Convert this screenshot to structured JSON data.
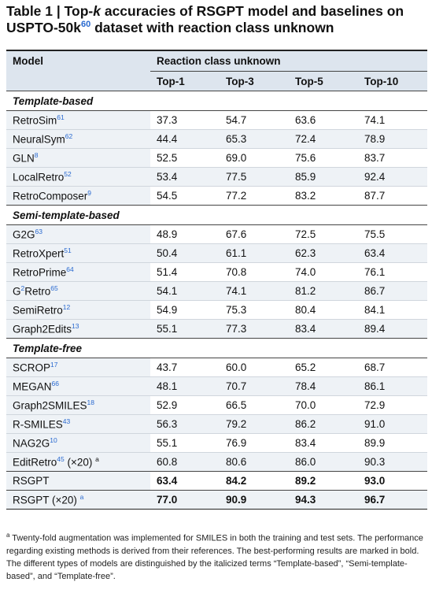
{
  "title": {
    "prefix": "Table 1 | Top-",
    "k": "k",
    "middle": " accuracies of RSGPT model and baselines on USPTO-50k",
    "ref": "60",
    "suffix": " dataset with reaction class unknown"
  },
  "header": {
    "model": "Model",
    "group": "Reaction class unknown",
    "cols": [
      "Top-1",
      "Top-3",
      "Top-5",
      "Top-10"
    ]
  },
  "sections": [
    {
      "label": "Template-based",
      "rows": [
        {
          "pre": "",
          "sup_pre": "",
          "name": "RetroSim",
          "ref": "61",
          "extra": "",
          "values": [
            "37.3",
            "54.7",
            "63.6",
            "74.1"
          ]
        },
        {
          "pre": "",
          "sup_pre": "",
          "name": "NeuralSym",
          "ref": "62",
          "extra": "",
          "values": [
            "44.4",
            "65.3",
            "72.4",
            "78.9"
          ]
        },
        {
          "pre": "",
          "sup_pre": "",
          "name": "GLN",
          "ref": "8",
          "extra": "",
          "values": [
            "52.5",
            "69.0",
            "75.6",
            "83.7"
          ]
        },
        {
          "pre": "",
          "sup_pre": "",
          "name": "LocalRetro",
          "ref": "52",
          "extra": "",
          "values": [
            "53.4",
            "77.5",
            "85.9",
            "92.4"
          ]
        },
        {
          "pre": "",
          "sup_pre": "",
          "name": "RetroComposer",
          "ref": "9",
          "extra": "",
          "values": [
            "54.5",
            "77.2",
            "83.2",
            "87.7"
          ]
        }
      ]
    },
    {
      "label": "Semi-template-based",
      "rows": [
        {
          "pre": "",
          "sup_pre": "",
          "name": "G2G",
          "ref": "63",
          "extra": "",
          "values": [
            "48.9",
            "67.6",
            "72.5",
            "75.5"
          ]
        },
        {
          "pre": "",
          "sup_pre": "",
          "name": "RetroXpert",
          "ref": "51",
          "extra": "",
          "values": [
            "50.4",
            "61.1",
            "62.3",
            "63.4"
          ]
        },
        {
          "pre": "",
          "sup_pre": "",
          "name": "RetroPrime",
          "ref": "64",
          "extra": "",
          "values": [
            "51.4",
            "70.8",
            "74.0",
            "76.1"
          ]
        },
        {
          "pre": "G",
          "sup_pre": "2",
          "name": "Retro",
          "ref": "65",
          "extra": "",
          "values": [
            "54.1",
            "74.1",
            "81.2",
            "86.7"
          ]
        },
        {
          "pre": "",
          "sup_pre": "",
          "name": "SemiRetro",
          "ref": "12",
          "extra": "",
          "values": [
            "54.9",
            "75.3",
            "80.4",
            "84.1"
          ]
        },
        {
          "pre": "",
          "sup_pre": "",
          "name": "Graph2Edits",
          "ref": "13",
          "extra": "",
          "values": [
            "55.1",
            "77.3",
            "83.4",
            "89.4"
          ]
        }
      ]
    },
    {
      "label": "Template-free",
      "rows": [
        {
          "pre": "",
          "sup_pre": "",
          "name": "SCROP",
          "ref": "17",
          "extra": "",
          "values": [
            "43.7",
            "60.0",
            "65.2",
            "68.7"
          ]
        },
        {
          "pre": "",
          "sup_pre": "",
          "name": "MEGAN",
          "ref": "66",
          "extra": "",
          "values": [
            "48.1",
            "70.7",
            "78.4",
            "86.1"
          ]
        },
        {
          "pre": "",
          "sup_pre": "",
          "name": "Graph2SMILES",
          "ref": "18",
          "extra": "",
          "values": [
            "52.9",
            "66.5",
            "70.0",
            "72.9"
          ]
        },
        {
          "pre": "",
          "sup_pre": "",
          "name": "R-SMILES",
          "ref": "43",
          "extra": "",
          "values": [
            "56.3",
            "79.2",
            "86.2",
            "91.0"
          ]
        },
        {
          "pre": "",
          "sup_pre": "",
          "name": "NAG2G",
          "ref": "10",
          "extra": "",
          "values": [
            "55.1",
            "76.9",
            "83.4",
            "89.9"
          ]
        },
        {
          "pre": "",
          "sup_pre": "",
          "name": "EditRetro",
          "ref": "45",
          "extra": " (×20) ",
          "extra_sup": "a",
          "values": [
            "60.8",
            "80.6",
            "86.0",
            "90.3"
          ]
        }
      ]
    }
  ],
  "final_rows": [
    {
      "name": "RSGPT",
      "extra": "",
      "extra_sup": "",
      "values": [
        "63.4",
        "84.2",
        "89.2",
        "93.0"
      ]
    },
    {
      "name": "RSGPT (×20) ",
      "extra": "",
      "extra_sup": "a",
      "values": [
        "77.0",
        "90.9",
        "94.3",
        "96.7"
      ]
    }
  ],
  "footnote": {
    "mark": "a",
    "text": " Twenty-fold augmentation was implemented for SMILES in both the training and test sets. The performance regarding existing methods is derived from their references. The best-performing results are marked in bold. The different types of models are distinguished by the italicized terms “Template-based”, “Semi-template-based”, and “Template-free”."
  },
  "colors": {
    "header_bg": "#dde5ee",
    "stripe_bg": "#eef2f6",
    "ref_color": "#2a6ad0"
  }
}
